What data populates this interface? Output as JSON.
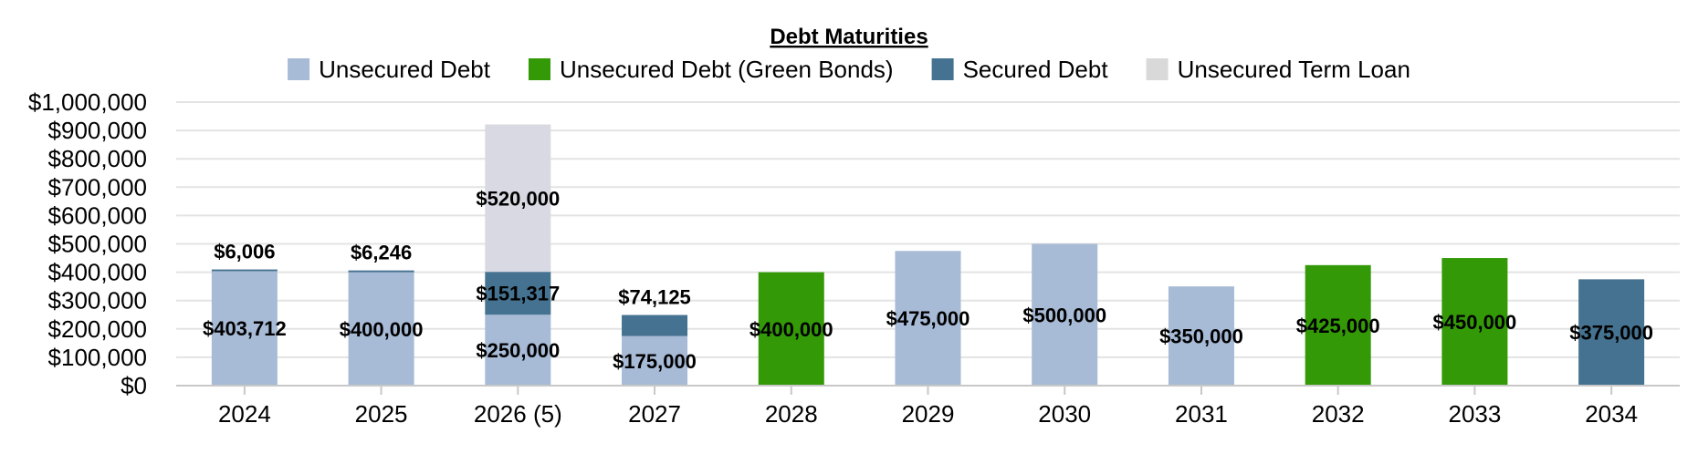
{
  "chart_data": {
    "type": "bar",
    "stacked": true,
    "title": "Debt Maturities",
    "xlabel": "",
    "ylabel": "",
    "ylim": [
      0,
      1000000
    ],
    "yticks": [
      0,
      100000,
      200000,
      300000,
      400000,
      500000,
      600000,
      700000,
      800000,
      900000,
      1000000
    ],
    "ytick_labels": [
      "$0",
      "$100,000",
      "$200,000",
      "$300,000",
      "$400,000",
      "$500,000",
      "$600,000",
      "$700,000",
      "$800,000",
      "$900,000",
      "$1,000,000"
    ],
    "grid": true,
    "legend_position": "top",
    "categories": [
      "2024",
      "2025",
      "2026 (5)",
      "2027",
      "2028",
      "2029",
      "2030",
      "2031",
      "2032",
      "2033",
      "2034"
    ],
    "series": [
      {
        "name": "Unsecured Debt",
        "color": "#a7bad6",
        "values": [
          403712,
          400000,
          250000,
          175000,
          0,
          475000,
          500000,
          350000,
          0,
          0,
          0
        ],
        "labels": [
          "$403,712",
          "$400,000",
          "$250,000",
          "$175,000",
          "",
          "$475,000",
          "$500,000",
          "$350,000",
          "",
          "",
          ""
        ]
      },
      {
        "name": "Unsecured Debt (Green Bonds)",
        "color": "#339906",
        "values": [
          0,
          0,
          0,
          0,
          400000,
          0,
          0,
          0,
          425000,
          450000,
          0
        ],
        "labels": [
          "",
          "",
          "",
          "",
          "$400,000",
          "",
          "",
          "",
          "$425,000",
          "$450,000",
          ""
        ]
      },
      {
        "name": "Secured Debt",
        "color": "#447290",
        "values": [
          6006,
          6246,
          151317,
          74125,
          0,
          0,
          0,
          0,
          0,
          0,
          375000
        ],
        "labels": [
          "$6,006",
          "$6,246",
          "$151,317",
          "$74,125",
          "",
          "",
          "",
          "",
          "",
          "",
          "$375,000"
        ]
      },
      {
        "name": "Unsecured Term Loan",
        "color": "#d9d9e3",
        "legend_color": "#d9d9d9",
        "values": [
          0,
          0,
          520000,
          0,
          0,
          0,
          0,
          0,
          0,
          0,
          0
        ],
        "labels": [
          "",
          "",
          "$520,000",
          "",
          "",
          "",
          "",
          "",
          "",
          "",
          ""
        ]
      }
    ]
  }
}
